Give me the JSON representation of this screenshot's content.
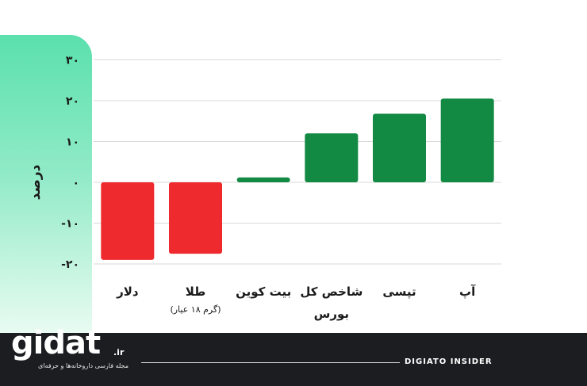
{
  "chart_data": {
    "type": "bar",
    "ylabel": "درصد",
    "ylim": [
      -20,
      30
    ],
    "yticks": [
      30,
      20,
      10,
      0,
      -10,
      -20
    ],
    "ytick_labels": [
      "۳۰",
      "۲۰",
      "۱۰",
      "۰",
      "-۱۰",
      "-۲۰"
    ],
    "grid": true,
    "categories": [
      {
        "label": "دلار",
        "sublabel": ""
      },
      {
        "label": "طلا",
        "sublabel": "(گرم ۱۸ عیار)"
      },
      {
        "label": "بیت کوین",
        "sublabel": ""
      },
      {
        "label": "شاخص کل",
        "sublabel": "بورس"
      },
      {
        "label": "تپسی",
        "sublabel": ""
      },
      {
        "label": "آپ",
        "sublabel": ""
      }
    ],
    "values": [
      -19,
      -17.5,
      1.2,
      12,
      16.8,
      20.5
    ],
    "colors": {
      "positive": "#138a44",
      "negative": "#ee2a2f"
    }
  },
  "footer": {
    "logo": "gidat",
    "logo_suffix": ".ir",
    "logo_tagline": "مجله فارسی داروخانه‌ها و حرفه‌ای",
    "brand": "DIGIATO INSIDER"
  }
}
